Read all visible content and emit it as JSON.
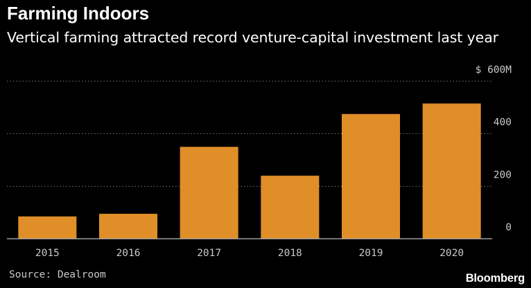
{
  "header": {
    "title": "Farming Indoors",
    "subtitle": "Vertical farming attracted record venture-capital investment last year"
  },
  "footer": {
    "source": "Source: Dealroom",
    "brand": "Bloomberg"
  },
  "colors": {
    "bar": "#e08e28",
    "grid": "#7a7a7a",
    "text": "#c9c9c9"
  },
  "chart_data": {
    "type": "bar",
    "title": "Farming Indoors",
    "subtitle": "Vertical farming attracted record venture-capital investment last year",
    "categories": [
      "2015",
      "2016",
      "2017",
      "2018",
      "2019",
      "2020"
    ],
    "values": [
      85,
      95,
      350,
      240,
      475,
      515
    ],
    "unit": "$M",
    "ylim": [
      0,
      600
    ],
    "yticks": [
      0,
      200,
      400,
      600
    ],
    "ytick_labels": [
      "0",
      "200",
      "400",
      "$ 600M"
    ],
    "xlabel": "",
    "ylabel": "",
    "grid": true,
    "y_axis_side": "right"
  }
}
